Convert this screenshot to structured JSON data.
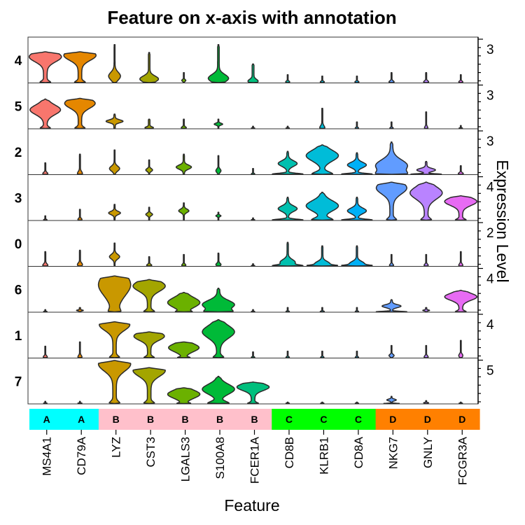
{
  "chart_data": {
    "type": "violin",
    "title": "Feature on x-axis with annotation",
    "xlabel": "Feature",
    "ylabel": "Expression Level",
    "features": [
      "MS4A1",
      "CD79A",
      "LYZ",
      "CST3",
      "LGALS3",
      "S100A8",
      "FCER1A",
      "CD8B",
      "KLRB1",
      "CD8A",
      "NKG7",
      "GNLY",
      "FCGR3A"
    ],
    "annotation": [
      "A",
      "A",
      "B",
      "B",
      "B",
      "B",
      "B",
      "C",
      "C",
      "C",
      "D",
      "D",
      "D"
    ],
    "annotation_colors": {
      "A": "#00FFFF",
      "B": "#FFC0CB",
      "C": "#00FF00",
      "D": "#FF8000"
    },
    "feature_colors": [
      "#F8766D",
      "#E58700",
      "#C99800",
      "#A3A500",
      "#6BB100",
      "#00BA38",
      "#00BF7D",
      "#00C0AF",
      "#00BCD8",
      "#00B0F6",
      "#619CFF",
      "#B983FF",
      "#E76BF3",
      "#FD61D1",
      "#FF67A4"
    ],
    "rows": [
      {
        "cluster": "4",
        "tick": "3",
        "violins": [
          {
            "feature": "MS4A1",
            "max": 4.3,
            "shape": "high_pear",
            "peak": 3.6,
            "width": 0.95
          },
          {
            "feature": "CD79A",
            "max": 4.3,
            "shape": "high_pear",
            "peak": 3.8,
            "width": 0.95
          },
          {
            "feature": "LYZ",
            "max": 5.3,
            "shape": "low_spike",
            "bulge": 0.9,
            "width": 0.35
          },
          {
            "feature": "CST3",
            "max": 4.2,
            "shape": "low_spike",
            "bulge": 0.5,
            "width": 0.55
          },
          {
            "feature": "LGALS3",
            "max": 1.4,
            "shape": "low_spike",
            "bulge": 0.3,
            "width": 0.12
          },
          {
            "feature": "S100A8",
            "max": 5.3,
            "shape": "low_spike",
            "bulge": 0.6,
            "width": 0.6
          },
          {
            "feature": "FCER1A",
            "max": 2.6,
            "shape": "low_spike",
            "bulge": 0.2,
            "width": 0.3
          },
          {
            "feature": "CD8B",
            "max": 1.1,
            "shape": "low_spike",
            "bulge": 0.1,
            "width": 0.12
          },
          {
            "feature": "KLRB1",
            "max": 0.9,
            "shape": "low_spike",
            "bulge": 0.1,
            "width": 0.12
          },
          {
            "feature": "CD8A",
            "max": 0.9,
            "shape": "low_spike",
            "bulge": 0.1,
            "width": 0.12
          },
          {
            "feature": "NKG7",
            "max": 1.4,
            "shape": "low_spike",
            "bulge": 0.1,
            "width": 0.15
          },
          {
            "feature": "GNLY",
            "max": 1.4,
            "shape": "low_spike",
            "bulge": 0.1,
            "width": 0.15
          },
          {
            "feature": "FCGR3A",
            "max": 1.1,
            "shape": "low_spike",
            "bulge": 0.1,
            "width": 0.12
          }
        ]
      },
      {
        "cluster": "5",
        "tick": "3",
        "violins": [
          {
            "feature": "MS4A1",
            "max": 4.1,
            "shape": "high_pear",
            "peak": 2.6,
            "width": 0.9
          },
          {
            "feature": "CD79A",
            "max": 4.2,
            "shape": "high_pear",
            "peak": 3.5,
            "width": 0.9
          },
          {
            "feature": "LYZ",
            "max": 2.0,
            "shape": "low_spike",
            "bulge": 1.0,
            "width": 0.5
          },
          {
            "feature": "CST3",
            "max": 1.3,
            "shape": "low_spike",
            "bulge": 0.1,
            "width": 0.25
          },
          {
            "feature": "LGALS3",
            "max": 1.3,
            "shape": "low_spike",
            "bulge": 0.1,
            "width": 0.15
          },
          {
            "feature": "S100A8",
            "max": 1.3,
            "shape": "low_spike",
            "bulge": 0.6,
            "width": 0.25
          },
          {
            "feature": "FCER1A",
            "max": 0.3,
            "shape": "low_spike",
            "bulge": 0.05,
            "width": 0.1
          },
          {
            "feature": "CD8B",
            "max": 0.3,
            "shape": "low_spike",
            "bulge": 0.05,
            "width": 0.1
          },
          {
            "feature": "KLRB1",
            "max": 2.8,
            "shape": "low_spike",
            "bulge": 0.1,
            "width": 0.15
          },
          {
            "feature": "CD8A",
            "max": 0.9,
            "shape": "low_spike",
            "bulge": 0.05,
            "width": 0.1
          },
          {
            "feature": "NKG7",
            "max": 0.9,
            "shape": "low_spike",
            "bulge": 0.05,
            "width": 0.1
          },
          {
            "feature": "GNLY",
            "max": 2.3,
            "shape": "low_spike",
            "bulge": 0.05,
            "width": 0.1
          },
          {
            "feature": "FCGR3A",
            "max": 0.4,
            "shape": "low_spike",
            "bulge": 0.05,
            "width": 0.1
          }
        ]
      },
      {
        "cluster": "2",
        "tick": "3",
        "violins": [
          {
            "feature": "MS4A1",
            "max": 1.6,
            "shape": "low_spike",
            "bulge": 0.1,
            "width": 0.15
          },
          {
            "feature": "CD79A",
            "max": 2.8,
            "shape": "low_spike",
            "bulge": 0.1,
            "width": 0.15
          },
          {
            "feature": "LYZ",
            "max": 3.4,
            "shape": "low_spike",
            "bulge": 0.8,
            "width": 0.3
          },
          {
            "feature": "CST3",
            "max": 2.0,
            "shape": "low_spike",
            "bulge": 0.6,
            "width": 0.2
          },
          {
            "feature": "LGALS3",
            "max": 2.8,
            "shape": "low_spike",
            "bulge": 1.0,
            "width": 0.45
          },
          {
            "feature": "S100A8",
            "max": 2.6,
            "shape": "low_spike",
            "bulge": 0.5,
            "width": 0.15
          },
          {
            "feature": "FCER1A",
            "max": 0.8,
            "shape": "low_spike",
            "bulge": 0.05,
            "width": 0.1
          },
          {
            "feature": "CD8B",
            "max": 3.2,
            "shape": "tall_low",
            "bulge": 1.5,
            "width": 0.9
          },
          {
            "feature": "KLRB1",
            "max": 4.1,
            "shape": "tall_body",
            "peak": 2.6,
            "width": 0.95
          },
          {
            "feature": "CD8A",
            "max": 3.0,
            "shape": "tall_low",
            "bulge": 1.3,
            "width": 0.9
          },
          {
            "feature": "NKG7",
            "max": 4.5,
            "shape": "tall_body",
            "peak": 1.2,
            "width": 0.95
          },
          {
            "feature": "GNLY",
            "max": 1.8,
            "shape": "tall_low",
            "bulge": 0.6,
            "width": 0.9
          },
          {
            "feature": "FCGR3A",
            "max": 1.2,
            "shape": "low_spike",
            "bulge": 0.1,
            "width": 0.15
          }
        ]
      },
      {
        "cluster": "3",
        "tick": "4",
        "violins": [
          {
            "feature": "MS4A1",
            "max": 0.6,
            "shape": "low_spike",
            "bulge": 0.05,
            "width": 0.1
          },
          {
            "feature": "CD79A",
            "max": 1.5,
            "shape": "low_spike",
            "bulge": 0.1,
            "width": 0.12
          },
          {
            "feature": "LYZ",
            "max": 2.2,
            "shape": "low_spike",
            "bulge": 1.0,
            "width": 0.35
          },
          {
            "feature": "CST3",
            "max": 1.8,
            "shape": "low_spike",
            "bulge": 0.8,
            "width": 0.2
          },
          {
            "feature": "LGALS3",
            "max": 2.4,
            "shape": "low_spike",
            "bulge": 1.3,
            "width": 0.3
          },
          {
            "feature": "S100A8",
            "max": 1.1,
            "shape": "low_spike",
            "bulge": 0.6,
            "width": 0.15
          },
          {
            "feature": "FCER1A",
            "max": 0.3,
            "shape": "low_spike",
            "bulge": 0.05,
            "width": 0.1
          },
          {
            "feature": "CD8B",
            "max": 3.2,
            "shape": "tall_low",
            "bulge": 1.6,
            "width": 0.9
          },
          {
            "feature": "KLRB1",
            "max": 3.9,
            "shape": "tall_body",
            "peak": 2.0,
            "width": 0.95
          },
          {
            "feature": "CD8A",
            "max": 3.2,
            "shape": "tall_low",
            "bulge": 1.3,
            "width": 0.9
          },
          {
            "feature": "NKG7",
            "max": 5.3,
            "shape": "high_pear",
            "peak": 4.5,
            "width": 0.9
          },
          {
            "feature": "GNLY",
            "max": 5.3,
            "shape": "high_pear",
            "peak": 3.8,
            "width": 0.95
          },
          {
            "feature": "FCGR3A",
            "max": 3.4,
            "shape": "high_pear",
            "peak": 2.6,
            "width": 0.95
          }
        ]
      },
      {
        "cluster": "0",
        "tick": "2",
        "violins": [
          {
            "feature": "MS4A1",
            "max": 2.0,
            "shape": "low_spike",
            "bulge": 0.1,
            "width": 0.15
          },
          {
            "feature": "CD79A",
            "max": 2.2,
            "shape": "low_spike",
            "bulge": 0.2,
            "width": 0.15
          },
          {
            "feature": "LYZ",
            "max": 3.2,
            "shape": "low_spike",
            "bulge": 1.3,
            "width": 0.3
          },
          {
            "feature": "CST3",
            "max": 1.3,
            "shape": "low_spike",
            "bulge": 0.1,
            "width": 0.15
          },
          {
            "feature": "LGALS3",
            "max": 1.6,
            "shape": "low_spike",
            "bulge": 0.1,
            "width": 0.12
          },
          {
            "feature": "S100A8",
            "max": 1.8,
            "shape": "low_spike",
            "bulge": 0.2,
            "width": 0.15
          },
          {
            "feature": "FCER1A",
            "max": 0.3,
            "shape": "low_spike",
            "bulge": 0.05,
            "width": 0.1
          },
          {
            "feature": "CD8B",
            "max": 3.3,
            "shape": "tall_low",
            "bulge": 0.5,
            "width": 0.9
          },
          {
            "feature": "KLRB1",
            "max": 2.8,
            "shape": "tall_low",
            "bulge": 0.3,
            "width": 0.9
          },
          {
            "feature": "CD8A",
            "max": 2.8,
            "shape": "tall_low",
            "bulge": 0.3,
            "width": 0.9
          },
          {
            "feature": "NKG7",
            "max": 1.6,
            "shape": "low_spike",
            "bulge": 0.1,
            "width": 0.12
          },
          {
            "feature": "GNLY",
            "max": 1.6,
            "shape": "low_spike",
            "bulge": 0.1,
            "width": 0.12
          },
          {
            "feature": "FCGR3A",
            "max": 2.0,
            "shape": "low_spike",
            "bulge": 0.1,
            "width": 0.12
          }
        ]
      },
      {
        "cluster": "6",
        "tick": "4",
        "violins": [
          {
            "feature": "MS4A1",
            "max": 0.3,
            "shape": "low_spike",
            "bulge": 0.05,
            "width": 0.1
          },
          {
            "feature": "CD79A",
            "max": 0.6,
            "shape": "low_spike",
            "bulge": 0.2,
            "width": 0.2
          },
          {
            "feature": "LYZ",
            "max": 5.0,
            "shape": "full_block",
            "peak": 3.8,
            "width": 0.95
          },
          {
            "feature": "CST3",
            "max": 4.5,
            "shape": "high_pear",
            "peak": 3.6,
            "width": 0.95
          },
          {
            "feature": "LGALS3",
            "max": 2.7,
            "shape": "mid_oval",
            "peak": 1.3,
            "width": 0.95
          },
          {
            "feature": "S100A8",
            "max": 3.3,
            "shape": "tall_body",
            "peak": 1.0,
            "width": 0.95
          },
          {
            "feature": "FCER1A",
            "max": 0.3,
            "shape": "low_spike",
            "bulge": 0.05,
            "width": 0.1
          },
          {
            "feature": "CD8B",
            "max": 0.6,
            "shape": "low_spike",
            "bulge": 0.05,
            "width": 0.1
          },
          {
            "feature": "KLRB1",
            "max": 0.6,
            "shape": "low_spike",
            "bulge": 0.05,
            "width": 0.12
          },
          {
            "feature": "CD8A",
            "max": 0.6,
            "shape": "low_spike",
            "bulge": 0.05,
            "width": 0.1
          },
          {
            "feature": "NKG7",
            "max": 1.7,
            "shape": "tall_low",
            "bulge": 0.8,
            "width": 0.9
          },
          {
            "feature": "GNLY",
            "max": 0.6,
            "shape": "low_spike",
            "bulge": 0.2,
            "width": 0.2
          },
          {
            "feature": "FCGR3A",
            "max": 3.0,
            "shape": "high_pear",
            "peak": 2.1,
            "width": 0.95
          }
        ]
      },
      {
        "cluster": "1",
        "tick": "4",
        "violins": [
          {
            "feature": "MS4A1",
            "max": 1.6,
            "shape": "low_spike",
            "bulge": 0.1,
            "width": 0.12
          },
          {
            "feature": "CD79A",
            "max": 2.2,
            "shape": "low_spike",
            "bulge": 0.1,
            "width": 0.12
          },
          {
            "feature": "LYZ",
            "max": 5.0,
            "shape": "high_pear",
            "peak": 4.6,
            "width": 0.9
          },
          {
            "feature": "CST3",
            "max": 3.6,
            "shape": "high_pear",
            "peak": 3.0,
            "width": 0.9
          },
          {
            "feature": "LGALS3",
            "max": 2.2,
            "shape": "mid_oval",
            "peak": 1.4,
            "width": 0.9
          },
          {
            "feature": "S100A8",
            "max": 5.3,
            "shape": "high_pear",
            "peak": 3.6,
            "width": 0.95
          },
          {
            "feature": "FCER1A",
            "max": 0.8,
            "shape": "low_spike",
            "bulge": 0.05,
            "width": 0.1
          },
          {
            "feature": "CD8B",
            "max": 0.9,
            "shape": "low_spike",
            "bulge": 0.05,
            "width": 0.1
          },
          {
            "feature": "KLRB1",
            "max": 0.9,
            "shape": "low_spike",
            "bulge": 0.05,
            "width": 0.1
          },
          {
            "feature": "CD8A",
            "max": 0.9,
            "shape": "low_spike",
            "bulge": 0.05,
            "width": 0.1
          },
          {
            "feature": "NKG7",
            "max": 1.7,
            "shape": "low_spike",
            "bulge": 0.3,
            "width": 0.15
          },
          {
            "feature": "GNLY",
            "max": 1.7,
            "shape": "low_spike",
            "bulge": 0.1,
            "width": 0.12
          },
          {
            "feature": "FCGR3A",
            "max": 2.4,
            "shape": "low_spike",
            "bulge": 0.3,
            "width": 0.12
          }
        ]
      },
      {
        "cluster": "7",
        "tick": "5",
        "violins": [
          {
            "feature": "MS4A1",
            "max": 0.3,
            "shape": "low_spike",
            "bulge": 0.05,
            "width": 0.1
          },
          {
            "feature": "CD79A",
            "max": 0.3,
            "shape": "low_spike",
            "bulge": 0.05,
            "width": 0.12
          },
          {
            "feature": "LYZ",
            "max": 6.0,
            "shape": "high_pear",
            "peak": 5.5,
            "width": 0.95
          },
          {
            "feature": "CST3",
            "max": 5.0,
            "shape": "high_pear",
            "peak": 4.6,
            "width": 0.95
          },
          {
            "feature": "LGALS3",
            "max": 2.2,
            "shape": "mid_oval",
            "peak": 1.3,
            "width": 0.95
          },
          {
            "feature": "S100A8",
            "max": 3.8,
            "shape": "tall_body",
            "peak": 2.0,
            "width": 0.95
          },
          {
            "feature": "FCER1A",
            "max": 3.0,
            "shape": "high_pear",
            "peak": 2.3,
            "width": 0.95
          },
          {
            "feature": "CD8B",
            "max": 0.2,
            "shape": "low_spike",
            "bulge": 0.05,
            "width": 0.1
          },
          {
            "feature": "KLRB1",
            "max": 0.2,
            "shape": "low_spike",
            "bulge": 0.05,
            "width": 0.1
          },
          {
            "feature": "CD8A",
            "max": 0.2,
            "shape": "low_spike",
            "bulge": 0.05,
            "width": 0.1
          },
          {
            "feature": "NKG7",
            "max": 1.0,
            "shape": "tall_low",
            "bulge": 0.5,
            "width": 0.45
          },
          {
            "feature": "GNLY",
            "max": 0.4,
            "shape": "low_spike",
            "bulge": 0.1,
            "width": 0.15
          },
          {
            "feature": "FCGR3A",
            "max": 0.2,
            "shape": "low_spike",
            "bulge": 0.05,
            "width": 0.1
          }
        ]
      }
    ]
  }
}
